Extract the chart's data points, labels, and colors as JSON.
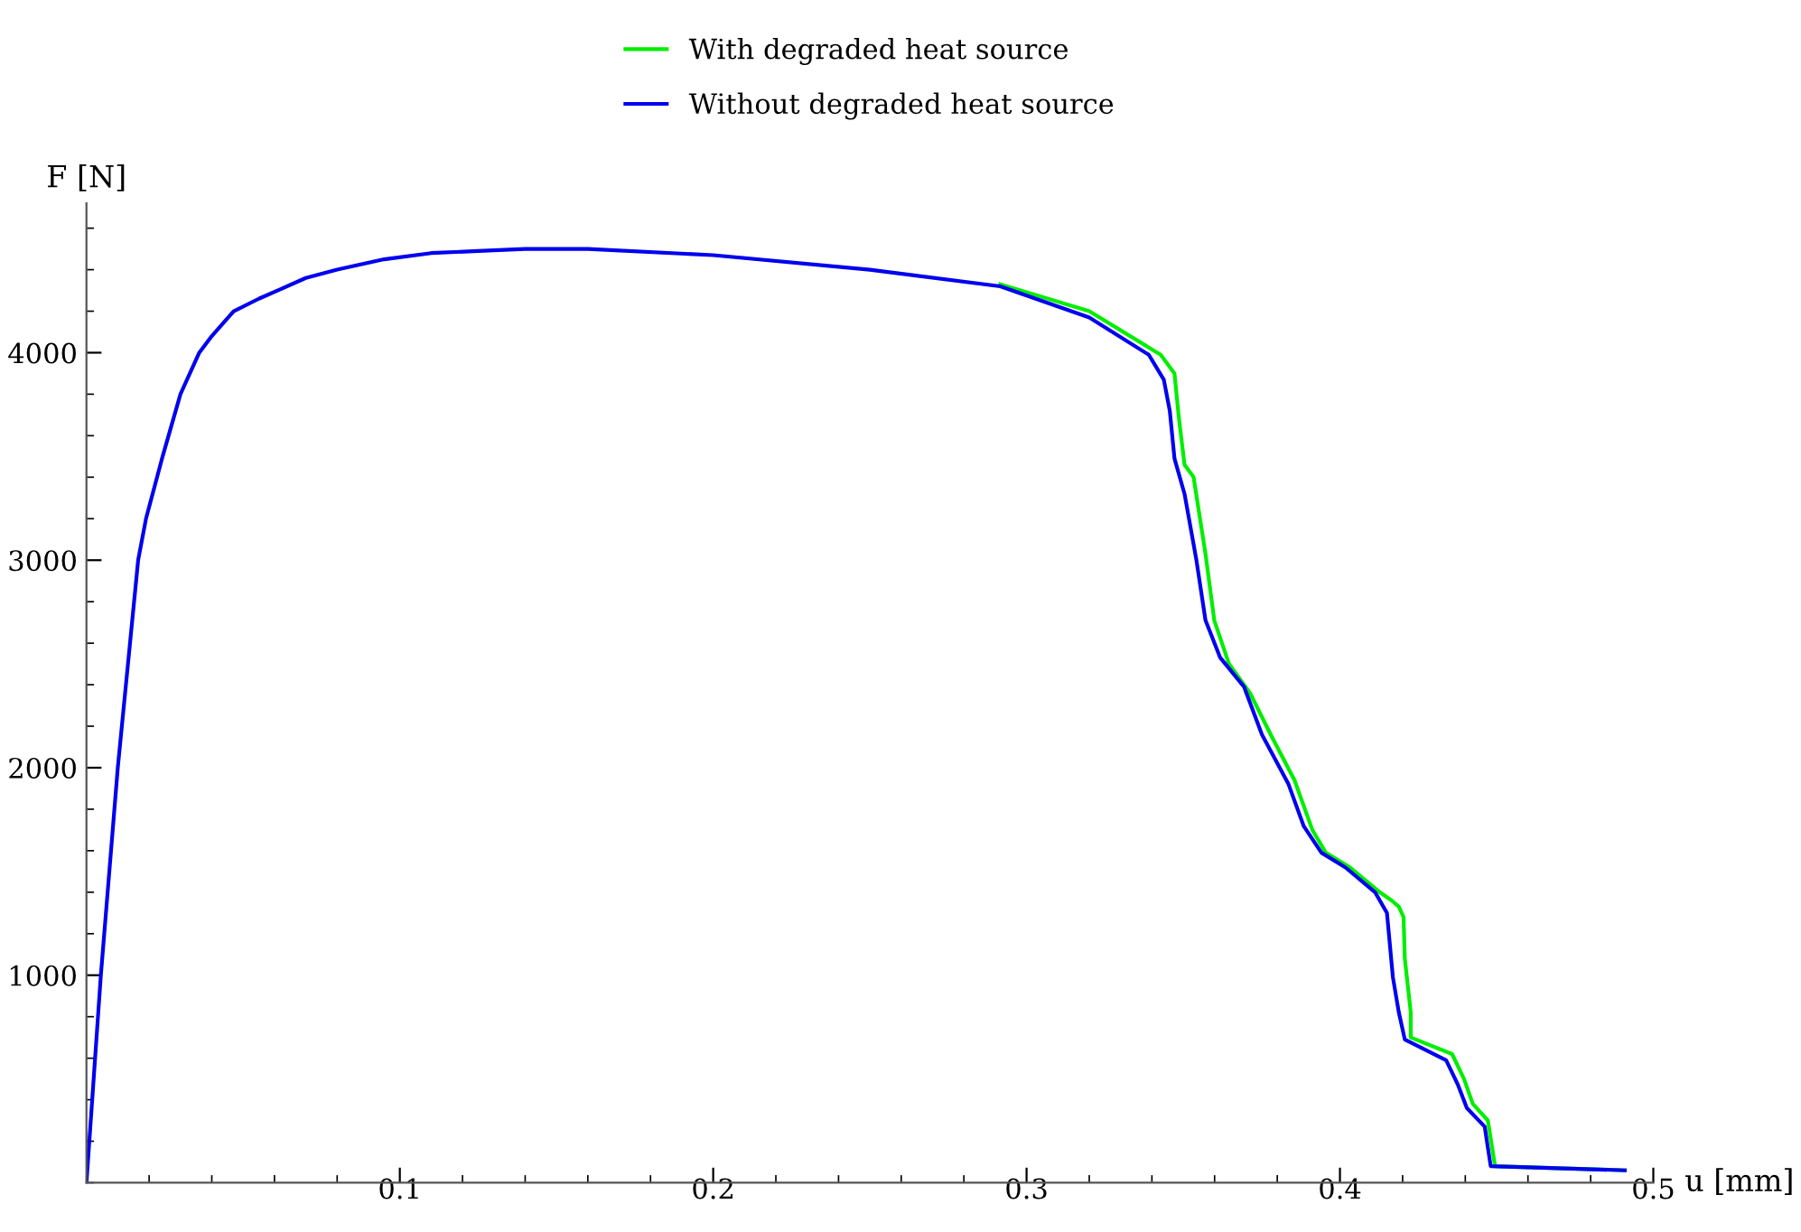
{
  "chart_data": {
    "type": "line",
    "xlabel": "u [mm]",
    "ylabel": "F [N]",
    "xlim": [
      0,
      0.5
    ],
    "ylim": [
      0,
      4720
    ],
    "xticks": [
      0.1,
      0.2,
      0.3,
      0.4,
      0.5
    ],
    "yticks": [
      1000,
      2000,
      3000,
      4000
    ],
    "grid": false,
    "legend": "top",
    "marker": "none",
    "line_style": "solid",
    "series": [
      {
        "name": "With degraded heat source",
        "color": "#00ee00",
        "x": [
          0.2916,
          0.32,
          0.3428,
          0.3472,
          0.3485,
          0.3504,
          0.3533,
          0.3571,
          0.3599,
          0.3646,
          0.3713,
          0.3779,
          0.3855,
          0.3912,
          0.3955,
          0.4032,
          0.4127,
          0.4165,
          0.4188,
          0.4203,
          0.4207,
          0.4226,
          0.4226,
          0.4358,
          0.4396,
          0.4424,
          0.4472,
          0.4495,
          0.4909
        ],
        "values": [
          4330,
          4200,
          3990,
          3900,
          3700,
          3460,
          3400,
          3030,
          2710,
          2500,
          2360,
          2160,
          1940,
          1700,
          1590,
          1520,
          1400,
          1360,
          1330,
          1280,
          1080,
          820,
          700,
          620,
          500,
          380,
          300,
          80,
          60
        ]
      },
      {
        "name": "Without degraded heat source",
        "color": "#0000ee",
        "x": [
          0,
          0.0046,
          0.01,
          0.0165,
          0.019,
          0.0243,
          0.03,
          0.036,
          0.04,
          0.047,
          0.055,
          0.061,
          0.07,
          0.08,
          0.095,
          0.11,
          0.125,
          0.14,
          0.16,
          0.2,
          0.25,
          0.2916,
          0.32,
          0.339,
          0.3438,
          0.3457,
          0.3472,
          0.3504,
          0.3542,
          0.3571,
          0.3618,
          0.3694,
          0.3751,
          0.3836,
          0.3884,
          0.3941,
          0.4017,
          0.4112,
          0.415,
          0.4169,
          0.4188,
          0.4207,
          0.4339,
          0.4377,
          0.4405,
          0.4462,
          0.4481,
          0.4909
        ],
        "values": [
          0,
          1000,
          2000,
          3000,
          3200,
          3500,
          3800,
          4000,
          4080,
          4200,
          4260,
          4300,
          4360,
          4400,
          4450,
          4480,
          4490,
          4500,
          4500,
          4470,
          4400,
          4320,
          4170,
          3990,
          3870,
          3720,
          3490,
          3320,
          3000,
          2710,
          2530,
          2390,
          2160,
          1920,
          1720,
          1590,
          1520,
          1400,
          1300,
          990,
          820,
          690,
          590,
          470,
          360,
          270,
          80,
          60
        ]
      }
    ]
  }
}
